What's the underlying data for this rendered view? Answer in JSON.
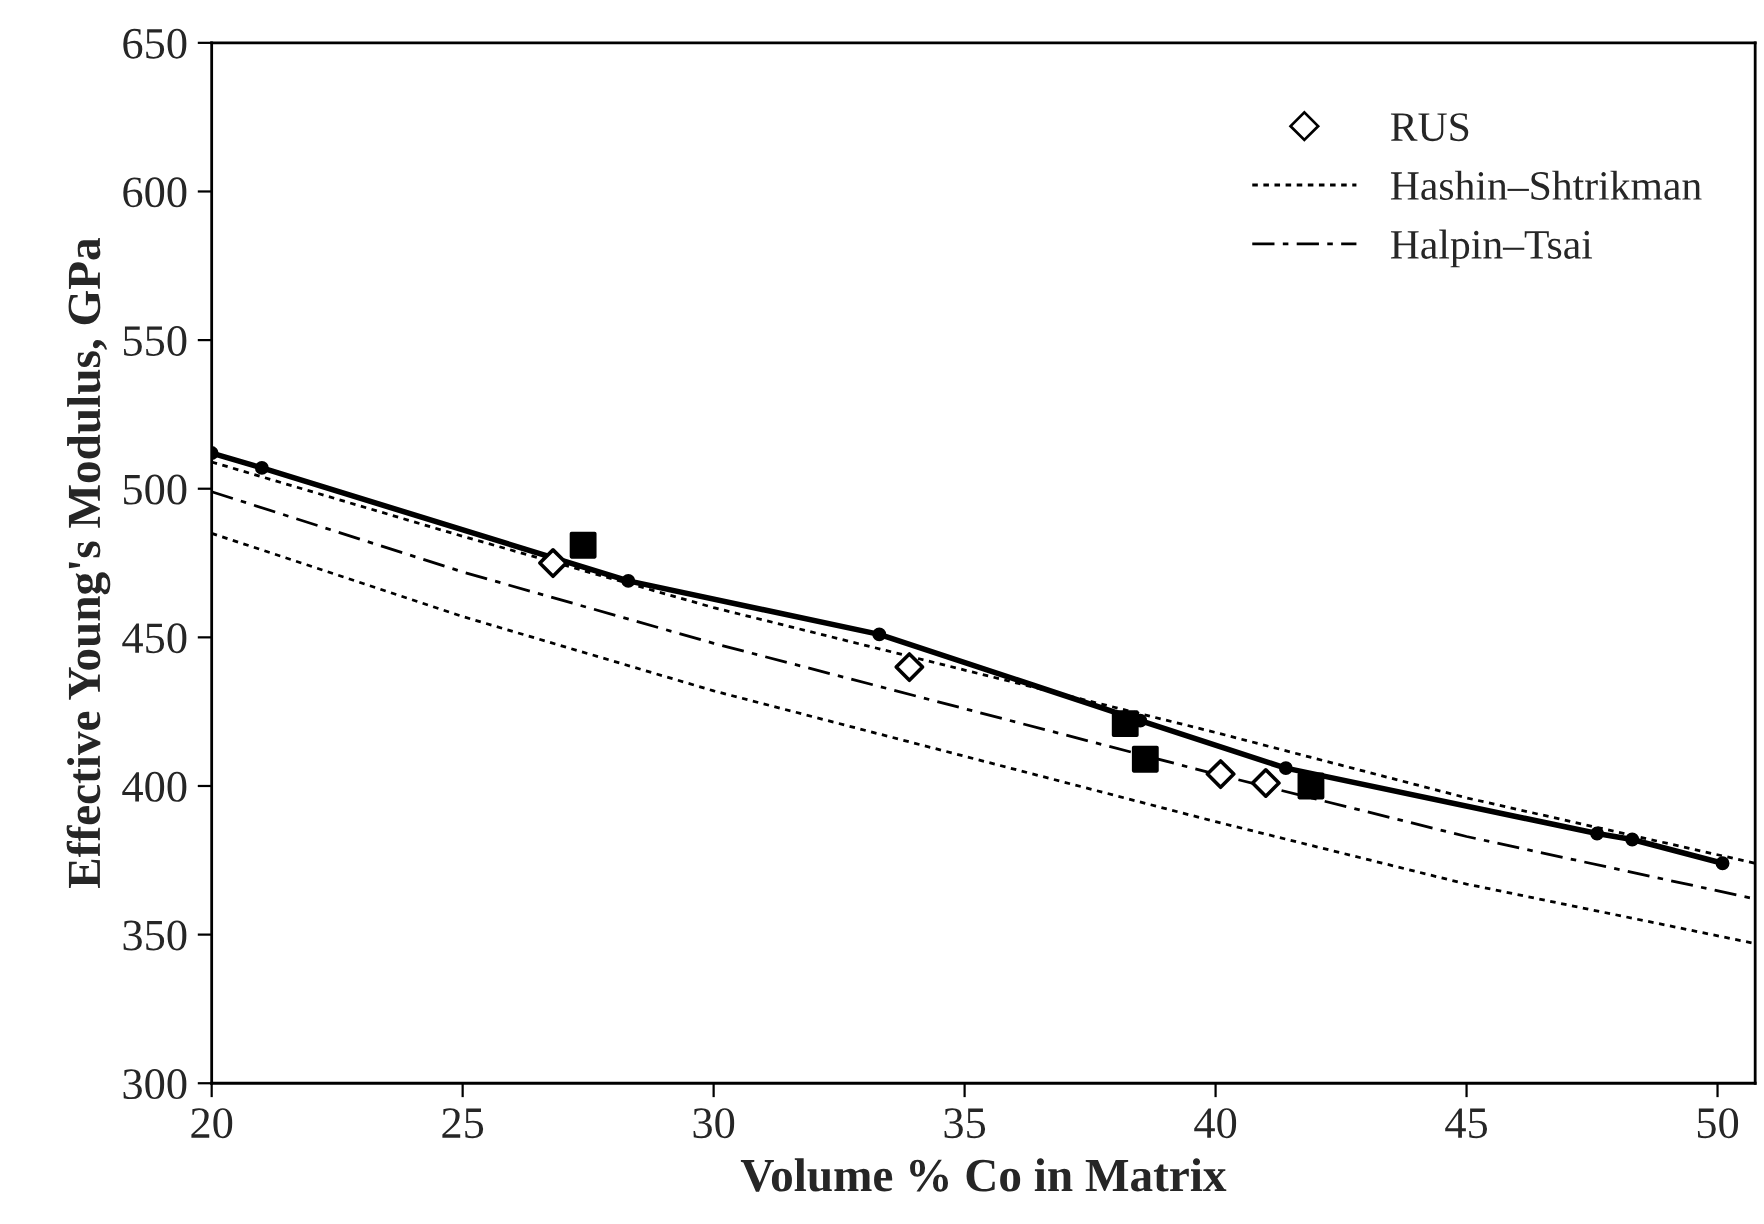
{
  "chart_data": {
    "type": "line",
    "xlabel": "Volume % Co in Matrix",
    "ylabel": "Effective Young's Modulus, GPa",
    "xlim": [
      20,
      50.75
    ],
    "xticks": [
      20,
      25,
      30,
      35,
      40,
      45,
      50
    ],
    "ylim": [
      300,
      650
    ],
    "yticks": [
      300,
      350,
      400,
      450,
      500,
      550,
      600,
      650
    ],
    "grid": false,
    "legend": "top right",
    "series": [
      {
        "name": "RUS",
        "type": "scatter",
        "marker": "diamond",
        "color": "#000000",
        "x": [
          26.8,
          33.9,
          40.1,
          41.0
        ],
        "values": [
          475,
          440,
          404,
          401
        ]
      },
      {
        "type": "scatter",
        "marker": "square",
        "color": "#000000",
        "x": [
          27.4,
          38.2,
          38.6,
          41.9
        ],
        "values": [
          481,
          421,
          409,
          400
        ]
      },
      {
        "name": "Hashin–Shtrikman",
        "line_style": "dotted",
        "marker": "none",
        "color": "#000000",
        "x": [
          20,
          25,
          30,
          35,
          40,
          45,
          50.75
        ],
        "values": [
          509,
          484,
          460,
          439,
          418,
          396,
          374
        ]
      },
      {
        "line_style": "dotted",
        "marker": "none",
        "color": "#000000",
        "x": [
          20,
          25,
          30,
          35,
          40,
          45,
          50.75
        ],
        "values": [
          485,
          457,
          432,
          410,
          388,
          367,
          347
        ]
      },
      {
        "name": "Halpin–Tsai",
        "line_style": "dashdot",
        "marker": "none",
        "color": "#000000",
        "x": [
          20,
          25,
          30,
          35,
          40,
          45,
          50.75
        ],
        "values": [
          499,
          472,
          448,
          426,
          404,
          383,
          362
        ]
      },
      {
        "line_style": "solid",
        "marker": "circle",
        "color": "#000000",
        "x": [
          20,
          21.0,
          28.3,
          33.3,
          38.5,
          41.4,
          47.6,
          48.3,
          50.1
        ],
        "values": [
          512,
          507,
          469,
          451,
          422,
          406,
          384,
          382,
          374
        ]
      }
    ]
  }
}
